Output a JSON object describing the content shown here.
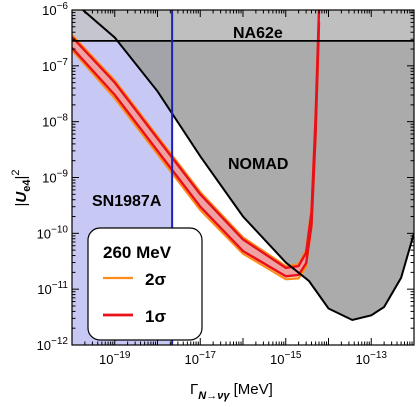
{
  "chart_data": {
    "type": "area",
    "xlabel": "Γ_{N→νγ} [MeV]",
    "ylabel": "|U_e4|^2",
    "x_scale": "log",
    "y_scale": "log",
    "xlim": [
      1e-20,
      1e-12
    ],
    "ylim": [
      1e-12,
      1e-06
    ],
    "x_tick_labels": [
      "10^-19",
      "10^-17",
      "10^-15",
      "10^-13"
    ],
    "y_tick_labels": [
      "10^-12",
      "10^-11",
      "10^-10",
      "10^-9",
      "10^-8",
      "10^-7",
      "10^-6"
    ],
    "regions": [
      {
        "name": "SN1987A",
        "label": "SN1987A",
        "color": "#c8c8f4",
        "x_max": 2.2e-18
      },
      {
        "name": "NA62e",
        "label": "NA62e",
        "color": "#c4c4c4",
        "y_min": 2.8e-07
      },
      {
        "name": "NOMAD",
        "label": "NOMAD",
        "color": "#9c9c9c",
        "boundary": [
          [
            1.8e-20,
            1e-06
          ],
          [
            1e-19,
            3.2e-07
          ],
          [
            1e-18,
            3.5e-08
          ],
          [
            1e-17,
            2.4e-09
          ],
          [
            1e-16,
            2e-10
          ],
          [
            1e-15,
            3e-11
          ],
          [
            3.5e-15,
            1.4e-11
          ],
          [
            1e-14,
            4.5e-12
          ],
          [
            3.6e-14,
            2.8e-12
          ],
          [
            1e-13,
            3.4e-12
          ],
          [
            2e-13,
            4.8e-12
          ],
          [
            5e-13,
            1.6e-11
          ],
          [
            1e-12,
            1e-10
          ]
        ]
      }
    ],
    "series": [
      {
        "name": "2σ",
        "color": "#ff8c1a",
        "kind": "band",
        "upper": [
          [
            1e-20,
            3.6e-07
          ],
          [
            1e-19,
            5.5e-08
          ],
          [
            1e-18,
            5.5e-09
          ],
          [
            1e-17,
            5.5e-10
          ],
          [
            1e-16,
            8.5e-11
          ],
          [
            1e-15,
            2.6e-11
          ],
          [
            2e-15,
            2.8e-11
          ],
          [
            3e-15,
            5e-11
          ],
          [
            4e-15,
            3e-10
          ],
          [
            5e-15,
            1.5e-08
          ],
          [
            6e-15,
            1e-06
          ]
        ],
        "lower": [
          [
            1e-20,
            1.9e-07
          ],
          [
            1e-19,
            2.6e-08
          ],
          [
            1e-18,
            2.6e-09
          ],
          [
            1e-17,
            2.6e-10
          ],
          [
            1e-16,
            4.3e-11
          ],
          [
            1e-15,
            1.5e-11
          ],
          [
            2e-15,
            1.55e-11
          ],
          [
            3e-15,
            2.5e-11
          ],
          [
            4e-15,
            1.2e-10
          ],
          [
            5e-15,
            5e-09
          ],
          [
            6e-15,
            4e-07
          ]
        ]
      },
      {
        "name": "1σ",
        "color": "#e8101a",
        "fill": "#f0a2a2",
        "kind": "band",
        "upper": [
          [
            1e-20,
            3.3e-07
          ],
          [
            1e-19,
            5e-08
          ],
          [
            1e-18,
            5e-09
          ],
          [
            1e-17,
            5e-10
          ],
          [
            1e-16,
            7.8e-11
          ],
          [
            1e-15,
            2.4e-11
          ],
          [
            2e-15,
            2.6e-11
          ],
          [
            3e-15,
            4.5e-11
          ],
          [
            4e-15,
            2.4e-10
          ],
          [
            5e-15,
            1.2e-08
          ],
          [
            6e-15,
            1e-06
          ]
        ],
        "lower": [
          [
            1e-20,
            2.1e-07
          ],
          [
            1e-19,
            3e-08
          ],
          [
            1e-18,
            3e-09
          ],
          [
            1e-17,
            3e-10
          ],
          [
            1e-16,
            4.8e-11
          ],
          [
            1e-15,
            1.7e-11
          ],
          [
            2e-15,
            1.8e-11
          ],
          [
            3e-15,
            2.9e-11
          ],
          [
            4e-15,
            1.4e-10
          ],
          [
            5e-15,
            6e-09
          ],
          [
            6e-15,
            6e-07
          ]
        ]
      }
    ],
    "legend": {
      "title": "260 MeV",
      "entries": [
        "2σ",
        "1σ"
      ],
      "placement": "bottom-left"
    }
  }
}
